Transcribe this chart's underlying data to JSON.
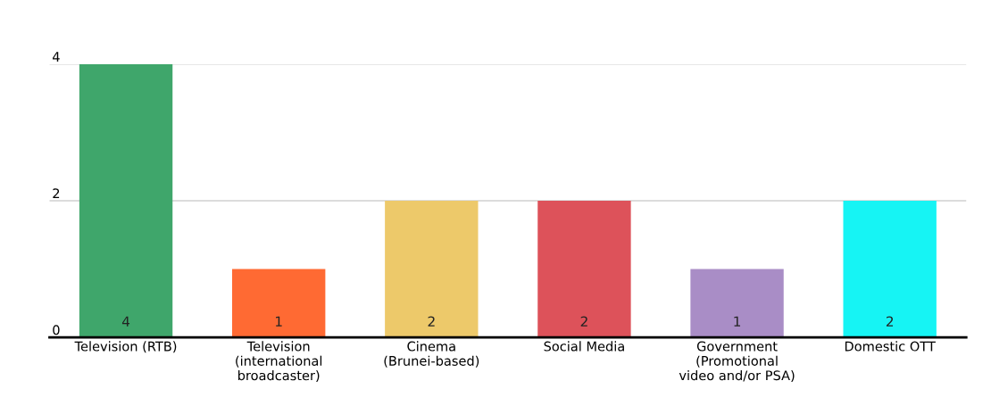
{
  "chart_data": {
    "type": "bar",
    "categories": [
      "Television (RTB)",
      "Television\n(international\nbroadcaster)",
      "Cinema\n(Brunei-based)",
      "Social Media",
      "Government\n(Promotional\nvideo and/or PSA)",
      "Domestic OTT"
    ],
    "values": [
      4,
      1,
      2,
      2,
      1,
      2
    ],
    "colors": [
      "#3fa66b",
      "#ff6a33",
      "#edc96a",
      "#dd525a",
      "#a98dc6",
      "#16f4f4"
    ],
    "ylim": [
      0,
      4
    ],
    "yticks": [
      0,
      2,
      4
    ],
    "grid": "y",
    "data_labels": true,
    "legend": false
  }
}
